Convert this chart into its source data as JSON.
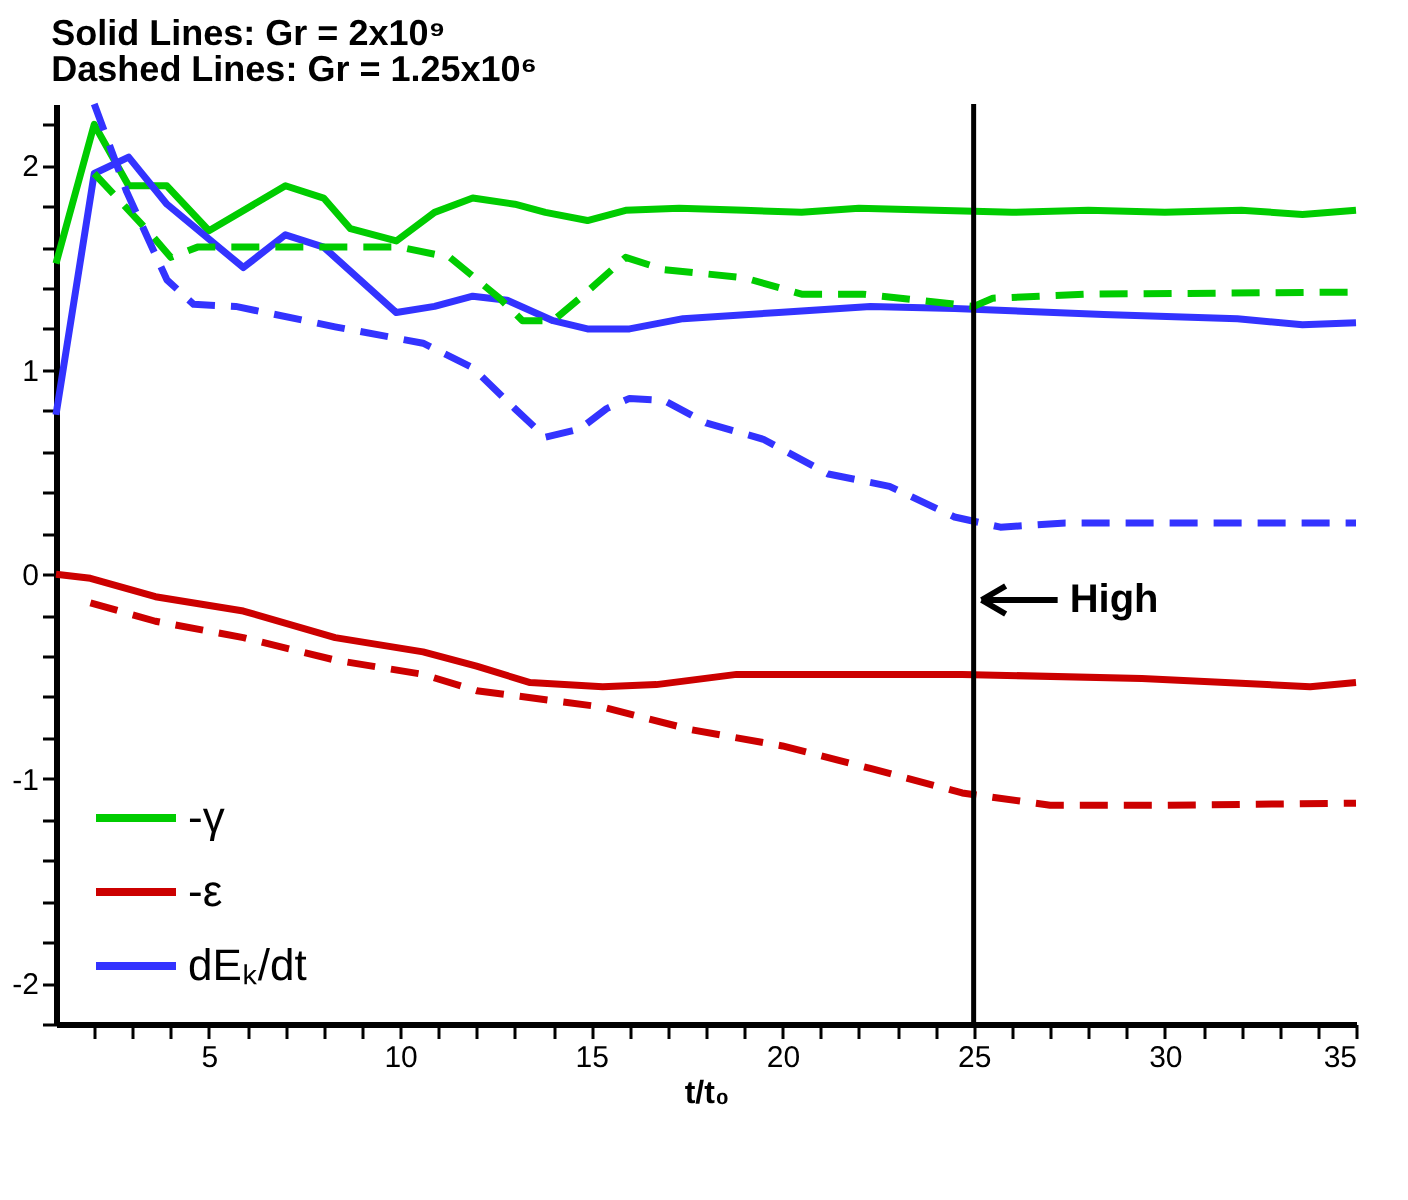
{
  "chart_data": {
    "type": "line",
    "title": "Solid Lines: Gr = 2x10⁹",
    "subtitle": "Dashed Lines: Gr = 1.25x10⁶",
    "xlabel": "t/t₀",
    "xlim": [
      1,
      35
    ],
    "ylim": [
      -2.2,
      2.3
    ],
    "xticks": [
      {
        "value": 2,
        "label": null
      },
      {
        "value": 3,
        "label": null
      },
      {
        "value": 4,
        "label": null
      },
      5,
      {
        "value": 6,
        "label": null
      },
      {
        "value": 7,
        "label": null
      },
      {
        "value": 8,
        "label": null
      },
      {
        "value": 9,
        "label": null
      },
      10,
      {
        "value": 11,
        "label": null
      },
      {
        "value": 12,
        "label": null
      },
      {
        "value": 13,
        "label": null
      },
      {
        "value": 14,
        "label": null
      },
      15,
      {
        "value": 16,
        "label": null
      },
      {
        "value": 17,
        "label": null
      },
      {
        "value": 18,
        "label": null
      },
      {
        "value": 19,
        "label": null
      },
      20,
      {
        "value": 21,
        "label": null
      },
      {
        "value": 22,
        "label": null
      },
      {
        "value": 23,
        "label": null
      },
      {
        "value": 24,
        "label": null
      },
      25,
      {
        "value": 26,
        "label": null
      },
      {
        "value": 27,
        "label": null
      },
      {
        "value": 28,
        "label": null
      },
      {
        "value": 29,
        "label": null
      },
      30,
      {
        "value": 31,
        "label": null
      },
      {
        "value": 32,
        "label": null
      },
      {
        "value": 33,
        "label": null
      },
      {
        "value": 34,
        "label": null
      },
      35
    ],
    "yticks": [
      {
        "value": -2.2,
        "label": null
      },
      -2,
      {
        "value": -1.8,
        "label": null
      },
      {
        "value": -1.6,
        "label": null
      },
      {
        "value": -1.4,
        "label": null
      },
      {
        "value": -1.2,
        "label": null
      },
      -1,
      {
        "value": -0.8,
        "label": null
      },
      {
        "value": -0.6,
        "label": null
      },
      {
        "value": -0.4,
        "label": null
      },
      {
        "value": -0.2,
        "label": null
      },
      0,
      {
        "value": 0.2,
        "label": null
      },
      {
        "value": 0.4,
        "label": null
      },
      {
        "value": 0.6,
        "label": null
      },
      {
        "value": 0.8,
        "label": null
      },
      1,
      {
        "value": 1.2,
        "label": null
      },
      {
        "value": 1.4,
        "label": null
      },
      {
        "value": 1.6,
        "label": null
      },
      {
        "value": 1.8,
        "label": null
      },
      2,
      {
        "value": 2.2,
        "label": null
      }
    ],
    "grid": false,
    "legend": "bottom left",
    "series": [
      {
        "name": "-γ",
        "color": "#00cc00",
        "line_style": "solid",
        "x": [
          1,
          2,
          2.9,
          3.9,
          5,
          7,
          8,
          8.7,
          9.9,
          10.9,
          11.9,
          13,
          13.8,
          14.9,
          15.9,
          17.3,
          19,
          20.5,
          22,
          24,
          26,
          28,
          30,
          32,
          33.6,
          35
        ],
        "values": [
          1.52,
          2.2,
          1.9,
          1.9,
          1.68,
          1.9,
          1.84,
          1.69,
          1.63,
          1.77,
          1.84,
          1.81,
          1.77,
          1.73,
          1.78,
          1.79,
          1.78,
          1.77,
          1.79,
          1.78,
          1.77,
          1.78,
          1.77,
          1.78,
          1.76,
          1.78
        ]
      },
      {
        "name": "-ε",
        "color": "#cc0000",
        "line_style": "solid",
        "x": [
          1,
          1.9,
          3.6,
          5.9,
          8.3,
          10.6,
          12,
          13.4,
          15.3,
          16.7,
          18.8,
          21.2,
          24.7,
          29.4,
          33.8,
          35
        ],
        "values": [
          0,
          -0.02,
          -0.11,
          -0.18,
          -0.31,
          -0.38,
          -0.45,
          -0.53,
          -0.55,
          -0.54,
          -0.49,
          -0.49,
          -0.49,
          -0.51,
          -0.55,
          -0.53
        ]
      },
      {
        "name": "dEₖ/dt",
        "color": "#3333ff",
        "line_style": "solid",
        "x": [
          1,
          2,
          2.9,
          3.9,
          5.9,
          7,
          8,
          9.9,
          10.9,
          11.9,
          12.8,
          14,
          14.9,
          16,
          17.4,
          19.9,
          22.3,
          24.5,
          28.4,
          31.9,
          33.6,
          35
        ],
        "values": [
          0.78,
          1.96,
          2.04,
          1.81,
          1.5,
          1.66,
          1.6,
          1.28,
          1.31,
          1.36,
          1.34,
          1.24,
          1.2,
          1.2,
          1.25,
          1.28,
          1.31,
          1.3,
          1.27,
          1.25,
          1.22,
          1.23
        ]
      },
      {
        "color": "#00cc00",
        "line_style": "dashed",
        "x": [
          2,
          3.5,
          4,
          4.7,
          10,
          11.3,
          12.6,
          13.2,
          14,
          14.7,
          15.9,
          16.9,
          19,
          20.5,
          22.1,
          23.6,
          25,
          25.5,
          28,
          35
        ],
        "values": [
          1.96,
          1.66,
          1.55,
          1.6,
          1.6,
          1.55,
          1.35,
          1.24,
          1.24,
          1.35,
          1.55,
          1.49,
          1.45,
          1.37,
          1.37,
          1.34,
          1.31,
          1.35,
          1.37,
          1.38
        ]
      },
      {
        "color": "#cc0000",
        "line_style": "dashed",
        "x": [
          1.9,
          3.6,
          5.9,
          8.3,
          10.6,
          12,
          15.3,
          17.6,
          20,
          22.3,
          24.7,
          27,
          30,
          35
        ],
        "values": [
          -0.14,
          -0.23,
          -0.31,
          -0.42,
          -0.49,
          -0.57,
          -0.65,
          -0.76,
          -0.84,
          -0.95,
          -1.07,
          -1.13,
          -1.13,
          -1.12
        ]
      },
      {
        "color": "#3333ff",
        "line_style": "dashed",
        "x": [
          2,
          2.85,
          3.9,
          4.6,
          5.7,
          8.3,
          10.6,
          11.9,
          13,
          13.8,
          14.7,
          15.4,
          16,
          16.9,
          18,
          19.5,
          21.2,
          22.8,
          24.5,
          25.7,
          27.4,
          35
        ],
        "values": [
          2.3,
          1.87,
          1.44,
          1.32,
          1.31,
          1.21,
          1.13,
          1.01,
          0.81,
          0.67,
          0.71,
          0.81,
          0.86,
          0.85,
          0.74,
          0.66,
          0.49,
          0.43,
          0.28,
          0.23,
          0.25,
          0.25
        ]
      }
    ],
    "ref_lines": [
      {
        "axis": "x",
        "value": 25,
        "label": "High",
        "color": "#000000",
        "line_style": "solid"
      }
    ]
  }
}
